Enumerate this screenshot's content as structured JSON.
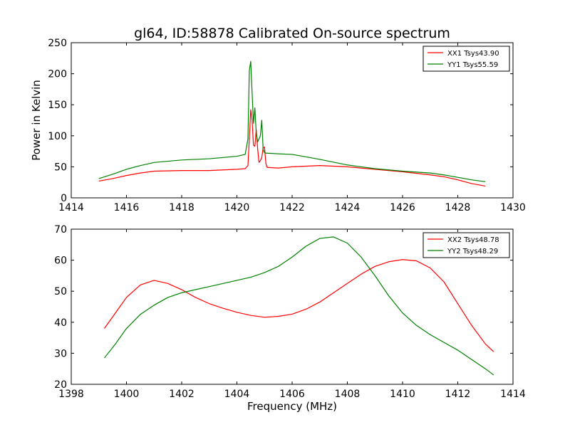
{
  "figure": {
    "title": "gl64, ID:58878 Calibrated On-source spectrum"
  },
  "chart_data": [
    {
      "type": "line",
      "title": "gl64, ID:58878 Calibrated On-source spectrum",
      "xlabel": "",
      "ylabel": "Power in Kelvin",
      "xlim": [
        1414,
        1430
      ],
      "ylim": [
        0,
        250
      ],
      "xticks": [
        "1414",
        "1416",
        "1418",
        "1420",
        "1422",
        "1424",
        "1426",
        "1428",
        "1430"
      ],
      "yticks": [
        "0",
        "50",
        "100",
        "150",
        "200",
        "250"
      ],
      "legend_position": "top-right",
      "grid": false,
      "series": [
        {
          "name": "XX1 Tsys43.90",
          "color": "#ff0000",
          "x": [
            1415.0,
            1415.5,
            1416.0,
            1416.5,
            1417.0,
            1418.0,
            1419.0,
            1420.0,
            1420.3,
            1420.4,
            1420.45,
            1420.5,
            1420.55,
            1420.6,
            1420.65,
            1420.7,
            1420.75,
            1420.8,
            1420.85,
            1420.9,
            1420.95,
            1421.0,
            1421.05,
            1421.1,
            1421.5,
            1422.0,
            1423.0,
            1424.0,
            1425.0,
            1426.0,
            1427.0,
            1427.5,
            1428.0,
            1428.5,
            1429.0
          ],
          "y": [
            27,
            31,
            36,
            40,
            43,
            44,
            44,
            46,
            47,
            52,
            95,
            142,
            125,
            85,
            83,
            110,
            80,
            57,
            60,
            65,
            80,
            82,
            55,
            49,
            48,
            50,
            52,
            50,
            46,
            42,
            37,
            34,
            29,
            23,
            19
          ]
        },
        {
          "name": "YY1 Tsys55.59",
          "color": "#008000",
          "x": [
            1415.0,
            1415.5,
            1416.0,
            1416.5,
            1417.0,
            1418.0,
            1419.0,
            1420.0,
            1420.3,
            1420.4,
            1420.45,
            1420.5,
            1420.55,
            1420.6,
            1420.65,
            1420.7,
            1420.75,
            1420.8,
            1420.85,
            1420.9,
            1420.95,
            1421.0,
            1421.05,
            1421.1,
            1421.5,
            1422.0,
            1423.0,
            1424.0,
            1425.0,
            1426.0,
            1427.0,
            1427.5,
            1428.0,
            1428.5,
            1429.0
          ],
          "y": [
            31,
            38,
            46,
            52,
            57,
            61,
            63,
            67,
            70,
            95,
            205,
            220,
            170,
            120,
            145,
            105,
            90,
            95,
            100,
            125,
            78,
            73,
            72,
            72,
            71,
            70,
            62,
            53,
            47,
            43,
            40,
            37,
            33,
            29,
            26
          ]
        }
      ]
    },
    {
      "type": "line",
      "title": "",
      "xlabel": "Frequency (MHz)",
      "ylabel": "",
      "xlim": [
        1398,
        1414
      ],
      "ylim": [
        20,
        70
      ],
      "xticks": [
        "1398",
        "1400",
        "1402",
        "1404",
        "1406",
        "1408",
        "1410",
        "1412",
        "1414"
      ],
      "yticks": [
        "20",
        "30",
        "40",
        "50",
        "60",
        "70"
      ],
      "legend_position": "top-right",
      "grid": false,
      "series": [
        {
          "name": "XX2 Tsys48.78",
          "color": "#ff0000",
          "x": [
            1399.2,
            1399.6,
            1400.0,
            1400.5,
            1401.0,
            1401.5,
            1402.0,
            1402.5,
            1403.0,
            1403.5,
            1404.0,
            1404.5,
            1405.0,
            1405.5,
            1406.0,
            1406.5,
            1407.0,
            1407.5,
            1408.0,
            1408.5,
            1409.0,
            1409.5,
            1410.0,
            1410.5,
            1411.0,
            1411.5,
            1412.0,
            1412.5,
            1413.0,
            1413.3
          ],
          "y": [
            38,
            43,
            48,
            52,
            53.5,
            52.5,
            50.5,
            48,
            46,
            44.5,
            43.2,
            42.2,
            41.6,
            41.9,
            42.6,
            44.2,
            46.5,
            49.5,
            52.5,
            55.5,
            58,
            59.5,
            60.2,
            59.8,
            57.5,
            53,
            46,
            39,
            33,
            30.5
          ]
        },
        {
          "name": "YY2 Tsys48.29",
          "color": "#008000",
          "x": [
            1399.2,
            1399.6,
            1400.0,
            1400.5,
            1401.0,
            1401.5,
            1402.0,
            1402.5,
            1403.0,
            1403.5,
            1404.0,
            1404.5,
            1405.0,
            1405.5,
            1406.0,
            1406.5,
            1407.0,
            1407.5,
            1408.0,
            1408.5,
            1409.0,
            1409.5,
            1410.0,
            1410.5,
            1411.0,
            1411.5,
            1412.0,
            1412.5,
            1413.0,
            1413.3
          ],
          "y": [
            28.5,
            33,
            38,
            42.5,
            45.5,
            48,
            49.5,
            50.5,
            51.5,
            52.5,
            53.5,
            54.5,
            56,
            58,
            61,
            64.5,
            67,
            67.5,
            65.5,
            61,
            55,
            48.5,
            43,
            39,
            36,
            33.5,
            31,
            28,
            25,
            23
          ]
        }
      ]
    }
  ]
}
